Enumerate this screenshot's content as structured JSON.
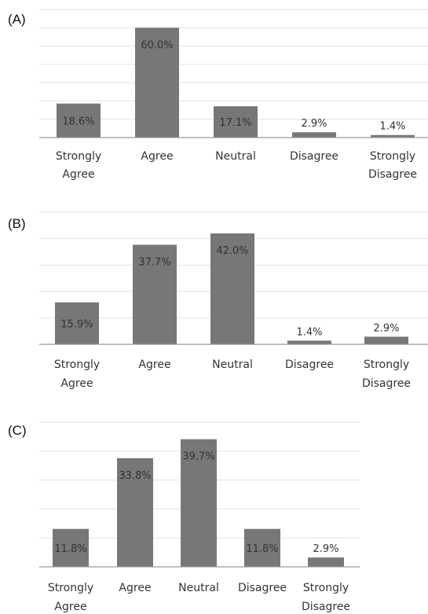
{
  "chart_data": [
    {
      "type": "bar",
      "panel_label": "(A)",
      "categories": [
        "Strongly Agree",
        "Agree",
        "Neutral",
        "Disagree",
        "Strongly Disagree"
      ],
      "values": [
        18.6,
        60.0,
        17.1,
        2.9,
        1.4
      ],
      "data_labels": [
        "18.6%",
        "60.0%",
        "17.1%",
        "2.9%",
        "1.4%"
      ],
      "title": "",
      "xlabel": "",
      "ylabel": "",
      "ylim": [
        0,
        70
      ],
      "grid": true,
      "bar_color": "#777777"
    },
    {
      "type": "bar",
      "panel_label": "(B)",
      "categories": [
        "Strongly Agree",
        "Agree",
        "Neutral",
        "Disagree",
        "Strongly Disagree"
      ],
      "values": [
        15.9,
        37.7,
        42.0,
        1.4,
        2.9
      ],
      "data_labels": [
        "15.9%",
        "37.7%",
        "42.0%",
        "1.4%",
        "2.9%"
      ],
      "title": "",
      "xlabel": "",
      "ylabel": "",
      "ylim": [
        0,
        50
      ],
      "grid": true,
      "bar_color": "#777777"
    },
    {
      "type": "bar",
      "panel_label": "(C)",
      "categories": [
        "Strongly Agree",
        "Agree",
        "Neutral",
        "Disagree",
        "Strongly Disagree"
      ],
      "values": [
        11.8,
        33.8,
        39.7,
        11.8,
        2.9
      ],
      "data_labels": [
        "11.8%",
        "33.8%",
        "39.7%",
        "11.8%",
        "2.9%"
      ],
      "title": "",
      "xlabel": "",
      "ylabel": "",
      "ylim": [
        0,
        45
      ],
      "grid": true,
      "bar_color": "#777777"
    }
  ]
}
